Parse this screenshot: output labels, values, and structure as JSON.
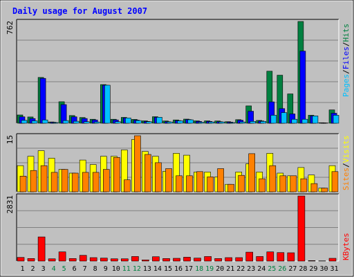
{
  "chart_data": {
    "type": "bar",
    "title": "Daily usage for August 2007",
    "categories": [
      "1",
      "2",
      "3",
      "4",
      "5",
      "6",
      "7",
      "8",
      "9",
      "10",
      "11",
      "12",
      "13",
      "14",
      "15",
      "16",
      "17",
      "18",
      "19",
      "20",
      "21",
      "22",
      "23",
      "24",
      "25",
      "26",
      "27",
      "28",
      "29",
      "30",
      "31"
    ],
    "weekend_days": [
      "4",
      "5",
      "11",
      "12",
      "18",
      "19",
      "25",
      "26"
    ],
    "panels": [
      {
        "id": "hits",
        "max_label": "762",
        "ylim": [
          0,
          762
        ],
        "series": [
          {
            "name": "Hits",
            "color": "#008040",
            "values": [
              62,
              47,
              343,
              10,
              161,
              58,
              43,
              30,
              290,
              30,
              44,
              29,
              18,
              49,
              17,
              25,
              31,
              18,
              18,
              17,
              12,
              27,
              130,
              21,
              390,
              360,
              220,
              762,
              60,
              4,
              100
            ]
          },
          {
            "name": "Files",
            "color": "#0000ff",
            "values": [
              48,
              35,
              336,
              8,
              140,
              48,
              36,
              25,
              285,
              25,
              40,
              24,
              14,
              45,
              12,
              20,
              28,
              14,
              14,
              12,
              9,
              23,
              90,
              17,
              160,
              110,
              70,
              540,
              55,
              3,
              75
            ]
          },
          {
            "name": "Pages",
            "color": "#00c0ff",
            "values": [
              22,
              18,
              25,
              5,
              20,
              15,
              12,
              10,
              285,
              12,
              40,
              20,
              12,
              45,
              10,
              18,
              26,
              8,
              10,
              10,
              5,
              10,
              14,
              14,
              60,
              80,
              30,
              30,
              55,
              2,
              60
            ]
          }
        ]
      },
      {
        "id": "visits",
        "max_label": "15",
        "ylim": [
          0,
          15
        ],
        "series": [
          {
            "name": "Visits",
            "color": "#ffff00",
            "values": [
              7,
              9.5,
              11,
              9,
              6,
              5,
              8.5,
              7.3,
              9.5,
              9.5,
              11.2,
              14,
              10.8,
              9.5,
              5.5,
              10.3,
              9.8,
              5.3,
              5.3,
              4,
              2,
              5.3,
              7.5,
              5.3,
              10.3,
              5,
              4.3,
              6.5,
              4.5,
              1,
              7
            ]
          },
          {
            "name": "Sites",
            "color": "#ff8000",
            "values": [
              4.2,
              5.7,
              7,
              5.2,
              6,
              5,
              5.2,
              5.2,
              6,
              9.2,
              3.2,
              15,
              10,
              7.8,
              6.2,
              4.3,
              4.3,
              5.4,
              4,
              6.2,
              2,
              4.4,
              10.2,
              3.5,
              7,
              4.3,
              4.3,
              3.5,
              2.2,
              1,
              5.4
            ]
          }
        ]
      },
      {
        "id": "kbytes",
        "max_label": "2831",
        "ylim": [
          0,
          2831
        ],
        "series": [
          {
            "name": "KBytes",
            "color": "#ff0000",
            "values": [
              160,
              110,
              1050,
              100,
              400,
              110,
              250,
              150,
              130,
              100,
              100,
              200,
              50,
              190,
              110,
              120,
              170,
              130,
              200,
              110,
              150,
              150,
              390,
              200,
              400,
              370,
              360,
              2831,
              20,
              10,
              120
            ]
          }
        ]
      }
    ]
  },
  "right_labels": {
    "top": [
      {
        "text": "Pages",
        "color": "#00c0ff"
      },
      {
        "text": "/",
        "color": "#000000"
      },
      {
        "text": "Files",
        "color": "#0000ff"
      },
      {
        "text": "/",
        "color": "#000000"
      },
      {
        "text": "Hits",
        "color": "#008040"
      }
    ],
    "middle": [
      {
        "text": "Sites",
        "color": "#ff8000"
      },
      {
        "text": "/",
        "color": "#000000"
      },
      {
        "text": "Visits",
        "color": "#ffff00"
      }
    ],
    "bottom": [
      {
        "text": "KBytes",
        "color": "#ff0000"
      }
    ]
  },
  "colors": {
    "frame": "#c0c0c0",
    "plot_bg": "#c0c0c0",
    "title": "#0000ff",
    "weekday_label": "#000000",
    "weekend_label": "#008040"
  }
}
